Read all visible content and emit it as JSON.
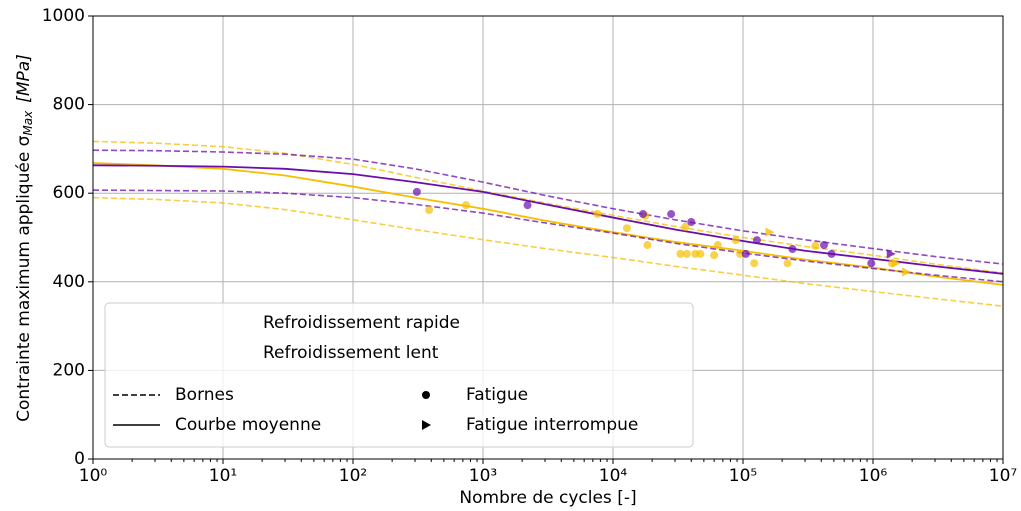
{
  "chart_data": {
    "type": "line",
    "x_label": "Nombre de cycles [-]",
    "y_label": {
      "text": "Contrainte maximum appliquée σ",
      "subscript": "Max",
      "unit": "[MPa]"
    },
    "xscale": "log",
    "xlim": [
      1,
      10000000
    ],
    "ylim": [
      0,
      1000
    ],
    "xticks": [
      {
        "value": 1,
        "label": "10⁰"
      },
      {
        "value": 10,
        "label": "10¹"
      },
      {
        "value": 100,
        "label": "10²"
      },
      {
        "value": 1000,
        "label": "10³"
      },
      {
        "value": 10000,
        "label": "10⁴"
      },
      {
        "value": 100000,
        "label": "10⁵"
      },
      {
        "value": 1000000,
        "label": "10⁶"
      },
      {
        "value": 10000000,
        "label": "10⁷"
      }
    ],
    "yticks": [
      0,
      200,
      400,
      600,
      800,
      1000
    ],
    "grid": true,
    "curve_x": [
      1,
      3,
      10,
      30,
      100,
      300,
      1000,
      3000,
      10000,
      30000,
      100000,
      300000,
      1000000,
      3000000,
      10000000
    ],
    "groups": [
      {
        "name": "Refroidissement rapide",
        "color": "#f5bf00",
        "mean": [
          668,
          663,
          655,
          640,
          615,
          590,
          565,
          538,
          512,
          490,
          470,
          450,
          432,
          412,
          393
        ],
        "upper": [
          717,
          713,
          705,
          690,
          665,
          636,
          605,
          578,
          550,
          525,
          500,
          480,
          460,
          440,
          420
        ],
        "lower": [
          590,
          586,
          578,
          563,
          540,
          518,
          495,
          475,
          455,
          435,
          415,
          396,
          378,
          362,
          345
        ],
        "fatigue": {
          "x": [
            385,
            740,
            7600,
            12800,
            17700,
            18400,
            33000,
            36000,
            37000,
            43000,
            47000,
            60000,
            64000,
            88000,
            95000,
            122000,
            220000,
            360000,
            1400000
          ],
          "y": [
            562,
            573,
            553,
            521,
            549,
            483,
            463,
            524,
            463,
            463,
            463,
            460,
            483,
            494,
            463,
            442,
            442,
            481,
            442
          ]
        },
        "interrupted": {
          "x": [
            160000,
            1500000,
            1800000
          ],
          "y": [
            512,
            442,
            422
          ]
        }
      },
      {
        "name": "Refroidissement lent",
        "color": "#6a0dad",
        "mean": [
          663,
          662,
          660,
          655,
          643,
          625,
          603,
          575,
          545,
          518,
          492,
          470,
          452,
          435,
          418
        ],
        "upper": [
          697,
          696,
          693,
          688,
          677,
          655,
          625,
          595,
          565,
          540,
          515,
          495,
          475,
          457,
          440
        ],
        "lower": [
          607,
          606,
          605,
          600,
          590,
          575,
          555,
          533,
          510,
          487,
          465,
          447,
          430,
          415,
          400
        ],
        "fatigue": {
          "x": [
            310,
            2200,
            17000,
            28000,
            40000,
            105000,
            128000,
            240000,
            420000,
            480000,
            970000
          ],
          "y": [
            603,
            573,
            553,
            553,
            535,
            463,
            494,
            474,
            483,
            463,
            442
          ]
        },
        "interrupted": {
          "x": [
            1370000
          ],
          "y": [
            463
          ]
        }
      }
    ],
    "legend": {
      "line_styles": [
        "Bornes",
        "Courbe moyenne"
      ],
      "markers": [
        "Fatigue",
        "Fatigue interrompue"
      ]
    }
  }
}
